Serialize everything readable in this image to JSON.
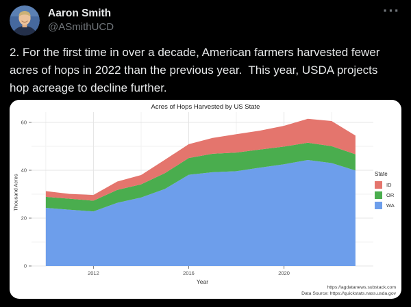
{
  "tweet": {
    "author_name": "Aaron Smith",
    "author_handle": "@ASmithUCD",
    "more_icon_glyph": "···",
    "text_lines": [
      "2. For the first time in over a decade, American farmers harvested fewer",
      "acres of hops in 2022 than the previous year.  This year, USDA projects",
      "hop acreage to decline further."
    ]
  },
  "chart_data": {
    "type": "area",
    "stacked": true,
    "title": "Acres of Hops Harvested by US State",
    "xlabel": "Year",
    "ylabel": "Thousand Acres",
    "legend_title": "State",
    "legend_position": "right",
    "grid": "on",
    "x": [
      2010,
      2011,
      2012,
      2013,
      2014,
      2015,
      2016,
      2017,
      2018,
      2019,
      2020,
      2021,
      2022,
      2023
    ],
    "series": [
      {
        "name": "ID",
        "color": "#e4756d",
        "values": [
          2.4,
          2.0,
          2.4,
          3.5,
          3.9,
          5.6,
          5.8,
          6.6,
          7.7,
          7.9,
          8.7,
          10.0,
          10.5,
          7.8
        ]
      },
      {
        "name": "OR",
        "color": "#4aad4e",
        "values": [
          4.6,
          4.6,
          4.5,
          5.4,
          5.5,
          6.6,
          7.0,
          7.7,
          7.8,
          7.6,
          7.4,
          7.2,
          7.1,
          6.8
        ]
      },
      {
        "name": "WA",
        "color": "#6d9eeb",
        "values": [
          24.3,
          23.5,
          22.8,
          26.4,
          28.6,
          32.2,
          38.1,
          39.2,
          39.6,
          41.1,
          42.5,
          44.3,
          43.0,
          39.9
        ]
      }
    ],
    "stack_order": [
      "WA",
      "OR",
      "ID"
    ],
    "x_ticks": [
      2012,
      2016,
      2020
    ],
    "x_minor": [
      2010,
      2014,
      2018,
      2022
    ],
    "y_ticks": [
      0,
      20,
      40,
      60
    ],
    "y_minor": [
      10,
      30,
      50
    ],
    "xlim": [
      2009.4,
      2023.75
    ],
    "ylim": [
      0,
      64.3
    ],
    "credits": [
      "https://agdatanews.substack.com",
      "Data Source: https://quickstats.nass.usda.gov"
    ]
  }
}
